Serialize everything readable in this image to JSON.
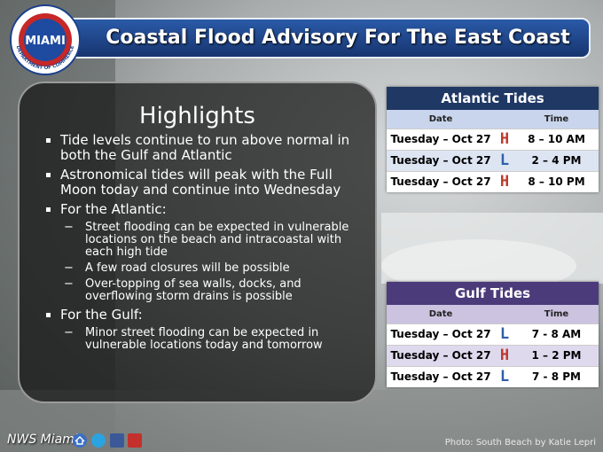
{
  "header": {
    "title": "Coastal Flood Advisory For The East Coast",
    "logo": {
      "top": "NATIONAL WEATHER SERVICE",
      "center": "MIAMI",
      "bottom": "DEPARTMENT OF COMMERCE"
    }
  },
  "highlights": {
    "title": "Highlights",
    "items": [
      {
        "text": "Tide levels continue to run above normal in both the Gulf and Atlantic",
        "subitems": []
      },
      {
        "text": "Astronomical tides will peak with the Full Moon today and continue into Wednesday",
        "subitems": []
      },
      {
        "text": "For the Atlantic:",
        "subitems": [
          "Street flooding  can be expected  in vulnerable locations on the beach and intracoastal with each high tide",
          "A few road closures will be possible",
          "Over-topping of sea walls, docks, and overflowing storm drains is possible"
        ]
      },
      {
        "text": "For the Gulf:",
        "subitems": [
          "Minor street flooding can be expected in vulnerable locations today and tomorrow"
        ]
      }
    ]
  },
  "tables": [
    {
      "title": "Atlantic Tides",
      "columns": [
        "Date",
        "Time"
      ],
      "rows": [
        {
          "date": "Tuesday – Oct 27",
          "tide": "H",
          "time": "8 – 10 AM"
        },
        {
          "date": "Tuesday – Oct 27",
          "tide": "L",
          "time": "2 – 4 PM"
        },
        {
          "date": "Tuesday – Oct 27",
          "tide": "H",
          "time": "8 – 10 PM"
        }
      ]
    },
    {
      "title": "Gulf Tides",
      "columns": [
        "Date",
        "Time"
      ],
      "rows": [
        {
          "date": "Tuesday – Oct 27",
          "tide": "L",
          "time": "7 - 8 AM"
        },
        {
          "date": "Tuesday – Oct 27",
          "tide": "H",
          "time": "1 – 2 PM"
        },
        {
          "date": "Tuesday – Oct 27",
          "tide": "L",
          "time": "7 - 8 PM"
        }
      ]
    }
  ],
  "footer": {
    "brand": "NWS Miami",
    "credit": "Photo: South Beach by Katie Lepri"
  }
}
